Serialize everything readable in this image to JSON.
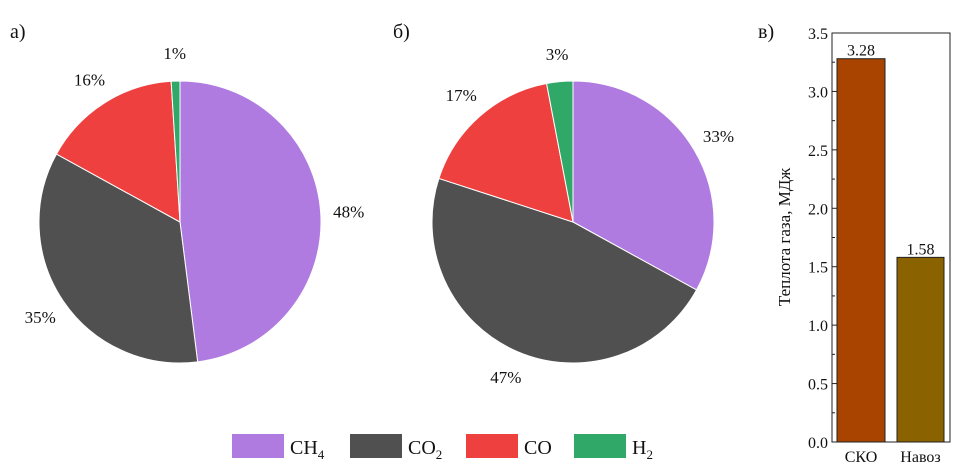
{
  "chart_data": [
    {
      "type": "pie",
      "panel_label": "а)",
      "start": "top",
      "direction": "clockwise",
      "slices": [
        {
          "name": "CH4",
          "value": 48,
          "label": "48%"
        },
        {
          "name": "CO2",
          "value": 35,
          "label": "35%"
        },
        {
          "name": "CO",
          "value": 16,
          "label": "16%"
        },
        {
          "name": "H2",
          "value": 1,
          "label": "1%"
        }
      ]
    },
    {
      "type": "pie",
      "panel_label": "б)",
      "start": "top",
      "direction": "clockwise",
      "slices": [
        {
          "name": "CH4",
          "value": 33,
          "label": "33%"
        },
        {
          "name": "CO2",
          "value": 47,
          "label": "47%"
        },
        {
          "name": "CO",
          "value": 17,
          "label": "17%"
        },
        {
          "name": "H2",
          "value": 3,
          "label": "3%"
        }
      ]
    },
    {
      "type": "bar",
      "panel_label": "в)",
      "ylabel": "Теплота газа, МДж",
      "ylim": [
        0,
        3.5
      ],
      "yticks": [
        "0.0",
        "0.5",
        "1.0",
        "1.5",
        "2.0",
        "2.5",
        "3.0",
        "3.5"
      ],
      "categories": [
        "СКО",
        "Навоз"
      ],
      "values": [
        3.28,
        1.58
      ],
      "data_labels": [
        "3.28",
        "1.58"
      ],
      "colors": [
        "#a84400",
        "#8a6200"
      ],
      "grid": false
    }
  ],
  "legend": {
    "placement": "bottom",
    "items": [
      {
        "key": "CH4",
        "base": "CH",
        "sub": "4",
        "color": "#b07be0"
      },
      {
        "key": "CO2",
        "base": "CO",
        "sub": "2",
        "color": "#505050"
      },
      {
        "key": "CO",
        "base": "CO",
        "sub": "",
        "color": "#ef4040"
      },
      {
        "key": "H2",
        "base": "H",
        "sub": "2",
        "color": "#30a868"
      }
    ]
  }
}
